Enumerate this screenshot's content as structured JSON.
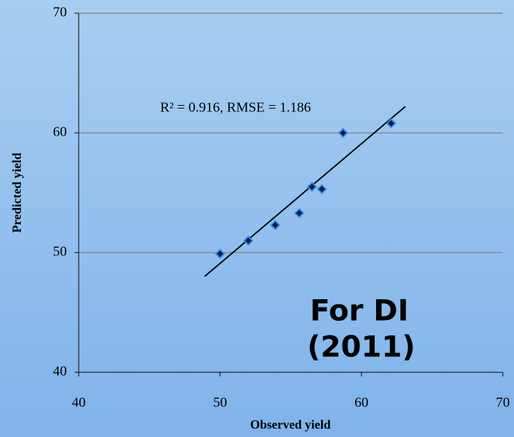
{
  "chart_data": {
    "type": "scatter",
    "annotation": "R² = 0.916, RMSE = 1.186",
    "label_lines": [
      "For DI",
      "(2011)"
    ],
    "x_label": "Observed yield",
    "y_label": "Predicted yield",
    "series": [
      {
        "color": "#0a1a4a",
        "edge": "#3a8ee6",
        "x": [
          50,
          52,
          53.9,
          55.6,
          56.5,
          57.2,
          58.7,
          62.1
        ],
        "values": [
          49.9,
          51.0,
          52.3,
          53.3,
          55.5,
          55.3,
          60.0,
          60.8
        ]
      }
    ],
    "trendline": {
      "color": "#000000",
      "x": [
        48.9,
        63.1
      ],
      "y": [
        48.0,
        62.2
      ]
    },
    "xlim": [
      40,
      70
    ],
    "xticks": [
      40,
      50,
      60,
      70
    ],
    "ylim": [
      40,
      70
    ],
    "yticks": [
      40,
      50,
      60,
      70
    ],
    "grid": true
  }
}
